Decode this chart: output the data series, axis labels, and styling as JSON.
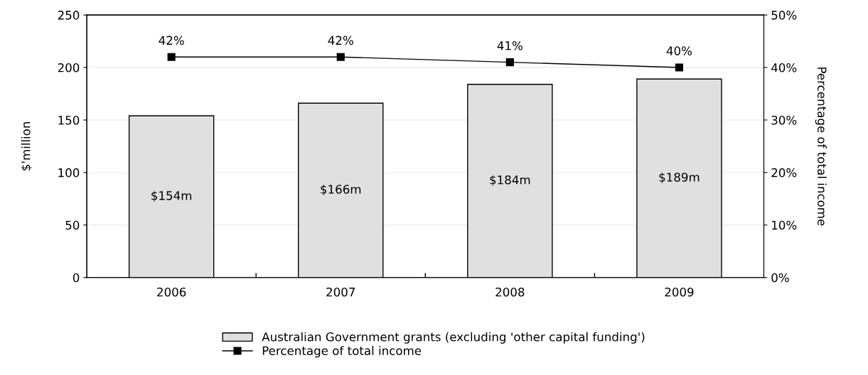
{
  "chart_data": {
    "type": "bar",
    "categories": [
      "2006",
      "2007",
      "2008",
      "2009"
    ],
    "ylabel": "$'million",
    "y2label": "Percentage of total income",
    "ylim": [
      0,
      250
    ],
    "yticks": [
      0,
      50,
      100,
      150,
      200,
      250
    ],
    "y2lim": [
      0,
      50
    ],
    "y2ticks": [
      {
        "value": 0,
        "label": "0%"
      },
      {
        "value": 10,
        "label": "10%"
      },
      {
        "value": 20,
        "label": "20%"
      },
      {
        "value": 30,
        "label": "30%"
      },
      {
        "value": 40,
        "label": "40%"
      },
      {
        "value": 50,
        "label": "50%"
      }
    ],
    "grid": "y",
    "legend": "bottom",
    "series": [
      {
        "name": "Australian Government grants (excluding 'other capital funding')",
        "color": "#e0e0e0",
        "values": [
          154,
          166,
          184,
          189
        ],
        "value_labels": [
          "$154m",
          "$166m",
          "$184m",
          "$189m"
        ]
      },
      {
        "name": "Percentage of total income",
        "type": "line",
        "axis": "y2",
        "color": "#000000",
        "marker": "square",
        "values": [
          42,
          42,
          41,
          40
        ],
        "value_labels": [
          "42%",
          "42%",
          "41%",
          "40%"
        ]
      }
    ]
  }
}
